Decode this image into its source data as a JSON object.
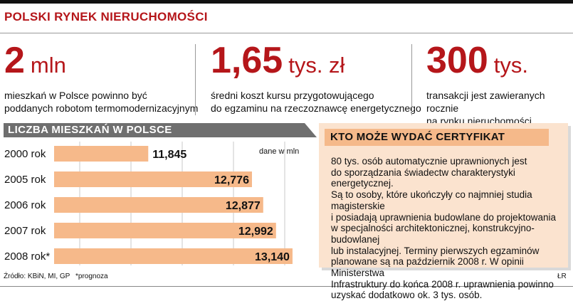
{
  "header": {
    "title": "POLSKI RYNEK NIERUCHOMOŚCI"
  },
  "stats": [
    {
      "value": "2",
      "unit": "mln",
      "desc_lines": [
        "mieszkań w Polsce powinno być",
        "poddanych robotom termomodernizacyjnym"
      ]
    },
    {
      "value": "1,65",
      "unit": "tys. zł",
      "desc_lines": [
        "średni koszt kursu przygotowującego",
        "do egzaminu na rzeczoznawcę energetycznego"
      ]
    },
    {
      "value": "300",
      "unit": "tys.",
      "desc_lines": [
        "transakcji jest zawieranych rocznie",
        "na rynku nieruchomości"
      ]
    }
  ],
  "chart_data": {
    "type": "bar",
    "orientation": "horizontal",
    "title": "LICZBA MIESZKAŃ W POLSCE",
    "unit_note": "dane w mln",
    "categories": [
      "2000 rok",
      "2005 rok",
      "2006 rok",
      "2007 rok",
      "2008 rok*"
    ],
    "values": [
      11.845,
      12.776,
      12.877,
      12.992,
      13.14
    ],
    "value_labels": [
      "11,845",
      "12,776",
      "12,877",
      "12,992",
      "13,140"
    ],
    "xlim": [
      11.0,
      13.3
    ],
    "grid": true,
    "bar_color": "#f6b98a"
  },
  "footer": {
    "source": "Źródło: KBiN, MI, GP",
    "note": "*prognoza",
    "credit": "ŁR"
  },
  "infobox": {
    "title": "KTO MOŻE WYDAĆ CERTYFIKAT",
    "lines": [
      "80 tys. osób automatycznie uprawnionych jest",
      "do sporządzania świadectw charakterystyki energetycznej.",
      "Są to osoby, które ukończyły co najmniej studia magisterskie",
      "i posiadają uprawnienia budowlane do projektowania",
      "w specjalności architektonicznej, konstrukcyjno-budowlanej",
      "lub instalacyjnej. Terminy pierwszych egzaminów",
      "planowane są na październik 2008 r. W opinii Ministerstwa",
      "Infrastruktury do końca 2008 r. uprawnienia powinno",
      "uzyskać dodatkowo ok. 3 tys. osób."
    ]
  }
}
